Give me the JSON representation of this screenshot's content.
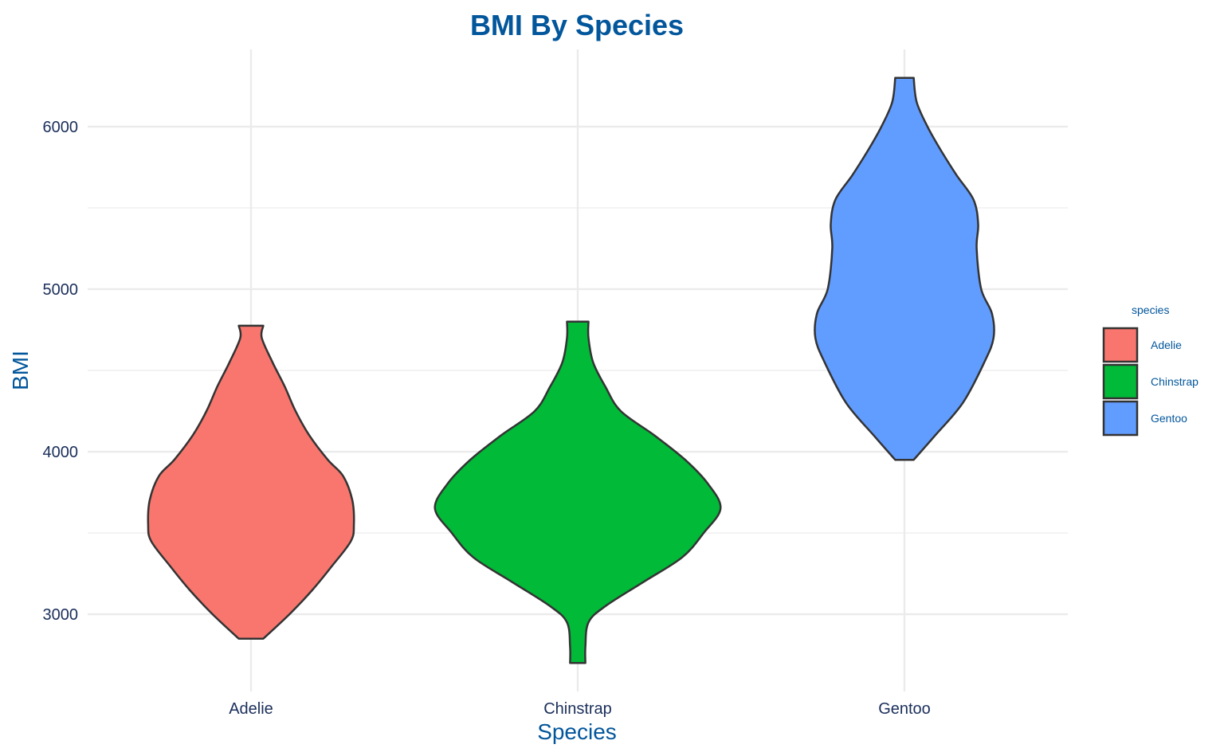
{
  "chart_data": {
    "type": "violin",
    "title": "BMI By Species",
    "xlabel": "Species",
    "ylabel": "BMI",
    "ylim": [
      2525,
      6475
    ],
    "yticks": [
      3000,
      4000,
      5000,
      6000
    ],
    "grid": true,
    "legend_title": "species",
    "legend_position": "right",
    "categories": [
      "Adelie",
      "Chinstrap",
      "Gentoo"
    ],
    "series": [
      {
        "name": "Adelie",
        "color": "#F8766D",
        "min": 2850,
        "max": 4775,
        "profile": [
          [
            2850,
            0.08
          ],
          [
            3000,
            0.25
          ],
          [
            3150,
            0.4
          ],
          [
            3300,
            0.53
          ],
          [
            3450,
            0.65
          ],
          [
            3550,
            0.67
          ],
          [
            3700,
            0.66
          ],
          [
            3850,
            0.6
          ],
          [
            3950,
            0.5
          ],
          [
            4100,
            0.38
          ],
          [
            4250,
            0.29
          ],
          [
            4400,
            0.22
          ],
          [
            4550,
            0.14
          ],
          [
            4700,
            0.07
          ],
          [
            4775,
            0.08
          ]
        ]
      },
      {
        "name": "Chinstrap",
        "color": "#00BA38",
        "min": 2700,
        "max": 4800,
        "profile": [
          [
            2700,
            0.05
          ],
          [
            2800,
            0.05
          ],
          [
            2950,
            0.07
          ],
          [
            3050,
            0.18
          ],
          [
            3200,
            0.43
          ],
          [
            3350,
            0.68
          ],
          [
            3500,
            0.82
          ],
          [
            3650,
            0.93
          ],
          [
            3800,
            0.85
          ],
          [
            3950,
            0.7
          ],
          [
            4100,
            0.5
          ],
          [
            4250,
            0.28
          ],
          [
            4400,
            0.18
          ],
          [
            4550,
            0.1
          ],
          [
            4700,
            0.07
          ],
          [
            4800,
            0.07
          ]
        ]
      },
      {
        "name": "Gentoo",
        "color": "#619CFF",
        "min": 3950,
        "max": 6300,
        "profile": [
          [
            3950,
            0.06
          ],
          [
            4100,
            0.2
          ],
          [
            4300,
            0.38
          ],
          [
            4550,
            0.52
          ],
          [
            4700,
            0.58
          ],
          [
            4850,
            0.57
          ],
          [
            5000,
            0.5
          ],
          [
            5250,
            0.47
          ],
          [
            5400,
            0.48
          ],
          [
            5550,
            0.45
          ],
          [
            5700,
            0.34
          ],
          [
            5850,
            0.24
          ],
          [
            6000,
            0.15
          ],
          [
            6150,
            0.08
          ],
          [
            6300,
            0.06
          ]
        ]
      }
    ]
  }
}
